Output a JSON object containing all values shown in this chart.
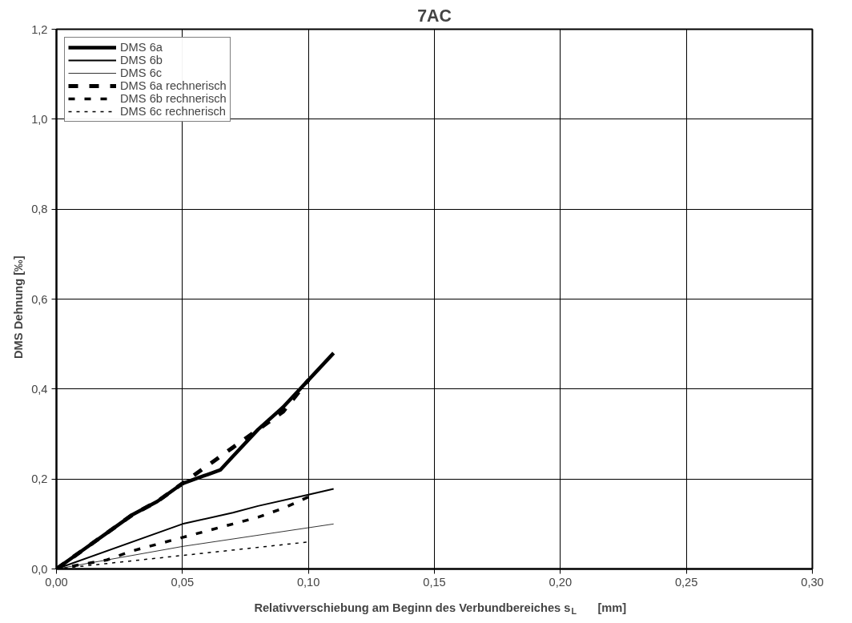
{
  "chart_data": {
    "type": "line",
    "title": "7AC",
    "xlabel": "Relativverschiebung am Beginn des Verbundbereiches s$_{L}$     [mm]",
    "ylabel": "DMS Dehnung      [‰]",
    "xlim": [
      0,
      0.3
    ],
    "ylim": [
      0,
      1.2
    ],
    "xticks": [
      {
        "value": 0,
        "label": "0,00"
      },
      {
        "value": 0.05,
        "label": "0,05"
      },
      {
        "value": 0.1,
        "label": "0,10"
      },
      {
        "value": 0.15,
        "label": "0,15"
      },
      {
        "value": 0.2,
        "label": "0,20"
      },
      {
        "value": 0.25,
        "label": "0,25"
      },
      {
        "value": 0.3,
        "label": "0,30"
      }
    ],
    "yticks": [
      {
        "value": 0,
        "label": "0,0"
      },
      {
        "value": 0.2,
        "label": "0,2"
      },
      {
        "value": 0.4,
        "label": "0,4"
      },
      {
        "value": 0.6,
        "label": "0,6"
      },
      {
        "value": 0.8,
        "label": "0,8"
      },
      {
        "value": 1.0,
        "label": "1,0"
      },
      {
        "value": 1.2,
        "label": "1,2"
      }
    ],
    "grid": true,
    "legend": "top left",
    "marker": "none",
    "series": [
      {
        "name": "DMS 6a",
        "color": "#000000",
        "line_style": "solid",
        "x": [
          0,
          0.01,
          0.02,
          0.03,
          0.04,
          0.05,
          0.06,
          0.065,
          0.07,
          0.08,
          0.09,
          0.1,
          0.11
        ],
        "values": [
          0,
          0.04,
          0.08,
          0.12,
          0.15,
          0.19,
          0.21,
          0.22,
          0.25,
          0.31,
          0.36,
          0.42,
          0.48
        ]
      },
      {
        "name": "DMS 6b",
        "color": "#000000",
        "line_style": "solid",
        "x": [
          0,
          0.05,
          0.07,
          0.08,
          0.1,
          0.11
        ],
        "values": [
          0,
          0.1,
          0.125,
          0.14,
          0.165,
          0.178
        ]
      },
      {
        "name": "DMS 6c",
        "color": "#000000",
        "line_style": "solid",
        "x": [
          0,
          0.05,
          0.11
        ],
        "values": [
          0,
          0.05,
          0.1
        ]
      },
      {
        "name": "DMS 6a rechnerisch",
        "color": "#000000",
        "line_style": "dashed",
        "x": [
          0,
          0.01,
          0.02,
          0.03,
          0.04,
          0.05,
          0.06,
          0.07,
          0.08,
          0.09,
          0.1
        ],
        "values": [
          0,
          0.04,
          0.08,
          0.12,
          0.15,
          0.19,
          0.23,
          0.27,
          0.31,
          0.35,
          0.42
        ]
      },
      {
        "name": "DMS 6b rechnerisch",
        "color": "#000000",
        "line_style": "dashed",
        "x": [
          0,
          0.01,
          0.02,
          0.03,
          0.04,
          0.05,
          0.06,
          0.07,
          0.08,
          0.09,
          0.1
        ],
        "values": [
          0,
          0.01,
          0.02,
          0.04,
          0.055,
          0.07,
          0.085,
          0.1,
          0.115,
          0.135,
          0.16
        ]
      },
      {
        "name": "DMS 6c rechnerisch",
        "color": "#000000",
        "line_style": "dotted",
        "x": [
          0,
          0.05,
          0.1
        ],
        "values": [
          0,
          0.03,
          0.06
        ]
      }
    ]
  }
}
